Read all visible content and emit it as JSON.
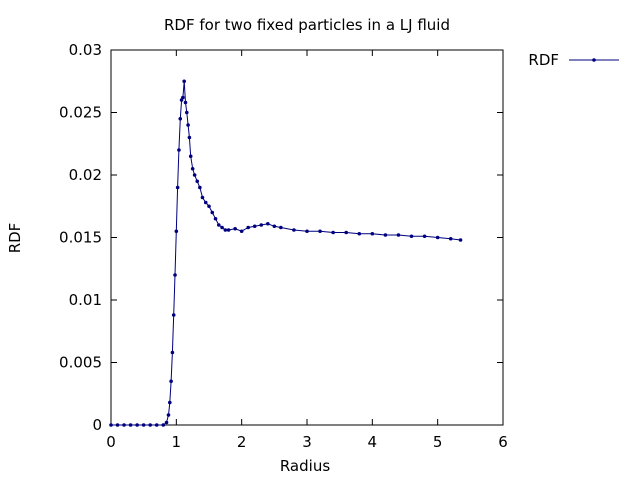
{
  "chart_data": {
    "type": "line",
    "title": "RDF for two fixed particles in a LJ fluid",
    "xlabel": "Radius",
    "ylabel": "RDF",
    "xlim": [
      0,
      6
    ],
    "ylim": [
      0,
      0.03
    ],
    "x_ticks": [
      0,
      1,
      2,
      3,
      4,
      5,
      6
    ],
    "x_tick_labels": [
      "0",
      "1",
      "2",
      "3",
      "4",
      "5",
      "6"
    ],
    "y_ticks": [
      0,
      0.005,
      0.01,
      0.015,
      0.02,
      0.025,
      0.03
    ],
    "y_tick_labels": [
      "0",
      "0.005",
      "0.01",
      "0.015",
      "0.02",
      "0.025",
      "0.03"
    ],
    "grid": false,
    "legend_position": "top-right-outside",
    "color": "#00007f",
    "series": [
      {
        "name": "RDF",
        "x": [
          0.0,
          0.1,
          0.2,
          0.3,
          0.4,
          0.5,
          0.6,
          0.7,
          0.8,
          0.85,
          0.88,
          0.9,
          0.92,
          0.94,
          0.96,
          0.98,
          1.0,
          1.02,
          1.04,
          1.06,
          1.08,
          1.1,
          1.12,
          1.14,
          1.16,
          1.18,
          1.2,
          1.22,
          1.25,
          1.28,
          1.32,
          1.36,
          1.4,
          1.45,
          1.5,
          1.55,
          1.6,
          1.65,
          1.7,
          1.75,
          1.8,
          1.9,
          2.0,
          2.1,
          2.2,
          2.3,
          2.4,
          2.5,
          2.6,
          2.8,
          3.0,
          3.2,
          3.4,
          3.6,
          3.8,
          4.0,
          4.2,
          4.4,
          4.6,
          4.8,
          5.0,
          5.2,
          5.35
        ],
        "y": [
          0.0,
          0.0,
          0.0,
          0.0,
          0.0,
          0.0,
          0.0,
          0.0,
          0.0,
          0.0002,
          0.0008,
          0.0018,
          0.0035,
          0.0058,
          0.0088,
          0.012,
          0.0155,
          0.019,
          0.022,
          0.0245,
          0.026,
          0.0262,
          0.0275,
          0.0258,
          0.025,
          0.024,
          0.023,
          0.0215,
          0.0205,
          0.02,
          0.0195,
          0.019,
          0.0182,
          0.0178,
          0.0175,
          0.017,
          0.0165,
          0.016,
          0.0158,
          0.0156,
          0.0156,
          0.0157,
          0.0155,
          0.0158,
          0.0159,
          0.016,
          0.0161,
          0.0159,
          0.0158,
          0.0156,
          0.0155,
          0.0155,
          0.0154,
          0.0154,
          0.0153,
          0.0153,
          0.0152,
          0.0152,
          0.0151,
          0.0151,
          0.015,
          0.0149,
          0.0148
        ]
      }
    ]
  }
}
